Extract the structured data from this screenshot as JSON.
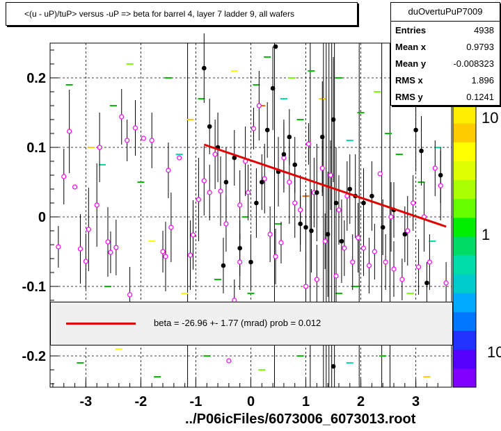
{
  "title": "<(u - uP)/tuP> versus  -uP => beta for barrel 4, layer 7 ladder 9, all wafers",
  "stats": {
    "name": "duOvertuPuP7009",
    "rows": [
      {
        "k": "Entries",
        "v": "4938"
      },
      {
        "k": "Mean x",
        "v": "0.9793"
      },
      {
        "k": "Mean y",
        "v": "-0.008323"
      },
      {
        "k": "RMS x",
        "v": "1.896"
      },
      {
        "k": "RMS y",
        "v": "0.1241"
      }
    ]
  },
  "fit": {
    "text": "beta =  -26.96 +-   1.77 (mrad) prob = 0.012",
    "line_color": "#e00000"
  },
  "x_file_label": "../P06icFiles/6073006_6073013.root",
  "z_labels": [
    "10",
    "1",
    "10"
  ],
  "chart_data": {
    "type": "scatter",
    "title": "<(u - uP)/tuP> versus  -uP => beta for barrel 4, layer 7 ladder 9, all wafers",
    "xlabel": "",
    "ylabel": "",
    "xlim": [
      -3.65,
      3.65
    ],
    "ylim": [
      -0.245,
      0.25
    ],
    "x_ticks": [
      -3,
      -2,
      -1,
      0,
      1,
      2,
      3
    ],
    "x_tick_labels": [
      "-3",
      "-2",
      "-1",
      "0",
      "1",
      "2",
      "3"
    ],
    "y_ticks": [
      -0.2,
      -0.1,
      0,
      0.1,
      0.2
    ],
    "y_tick_labels": [
      "-0.2",
      "-0.1",
      "0",
      "0.1",
      "0.2"
    ],
    "grid": true,
    "fit_line": {
      "x": [
        -0.85,
        3.55
      ],
      "y": [
        0.104,
        -0.014
      ],
      "color": "#e00000"
    },
    "pink_points": [
      {
        "x": -3.5,
        "y": -0.043,
        "e": 0.03
      },
      {
        "x": -3.4,
        "y": 0.058,
        "e": 0.04
      },
      {
        "x": -3.3,
        "y": 0.123,
        "e": 0.06
      },
      {
        "x": -3.2,
        "y": 0.043,
        "e": 0.0
      },
      {
        "x": -3.1,
        "y": -0.046,
        "e": 0.05
      },
      {
        "x": -3.0,
        "y": -0.064,
        "e": 0.04
      },
      {
        "x": -2.95,
        "y": -0.018,
        "e": 0.06
      },
      {
        "x": -2.8,
        "y": 0.017,
        "e": 0.06
      },
      {
        "x": -2.75,
        "y": 0.1,
        "e": 0.05
      },
      {
        "x": -2.6,
        "y": -0.036,
        "e": 0.05
      },
      {
        "x": -2.55,
        "y": -0.051,
        "e": 0.03
      },
      {
        "x": -2.45,
        "y": -0.044,
        "e": 0.04
      },
      {
        "x": -2.35,
        "y": 0.144,
        "e": 0.04
      },
      {
        "x": -2.2,
        "y": -0.112,
        "e": 0.04
      },
      {
        "x": -2.1,
        "y": 0.128,
        "e": 0.04
      },
      {
        "x": -1.95,
        "y": 0.113,
        "e": 0.0
      },
      {
        "x": -1.8,
        "y": 0.11,
        "e": 0.04
      },
      {
        "x": -1.6,
        "y": -0.05,
        "e": 0.03
      },
      {
        "x": -1.55,
        "y": -0.057,
        "e": 0.05
      },
      {
        "x": -1.5,
        "y": 0.067,
        "e": 0.04
      },
      {
        "x": -1.45,
        "y": -0.015,
        "e": 0.05
      },
      {
        "x": -1.3,
        "y": 0.085,
        "e": 0.0
      },
      {
        "x": -1.1,
        "y": -0.055,
        "e": 0.05
      },
      {
        "x": -0.95,
        "y": 0.025,
        "e": 0.06
      },
      {
        "x": -0.85,
        "y": 0.052,
        "e": 0.05
      },
      {
        "x": -0.75,
        "y": 0.035,
        "e": 0.04
      },
      {
        "x": -0.65,
        "y": 0.09,
        "e": 0.05
      },
      {
        "x": -0.55,
        "y": 0.037,
        "e": 0.05
      },
      {
        "x": -0.45,
        "y": -0.01,
        "e": 0.04
      },
      {
        "x": -0.3,
        "y": -0.12,
        "e": 0.03
      },
      {
        "x": -0.2,
        "y": 0.017,
        "e": 0.05
      },
      {
        "x": -0.1,
        "y": 0.08,
        "e": 0.05
      },
      {
        "x": -0.05,
        "y": 0.035,
        "e": 0.04
      },
      {
        "x": -0.2,
        "y": -0.065,
        "e": 0.04
      },
      {
        "x": 0.05,
        "y": 0.127,
        "e": 0.03
      },
      {
        "x": 0.15,
        "y": 0.16,
        "e": 0.05
      },
      {
        "x": 0.25,
        "y": 0.055,
        "e": 0.05
      },
      {
        "x": 0.35,
        "y": -0.025,
        "e": 0.04
      },
      {
        "x": 0.45,
        "y": -0.057,
        "e": 0.04
      },
      {
        "x": 0.55,
        "y": -0.037,
        "e": 0.03
      },
      {
        "x": 0.6,
        "y": 0.085,
        "e": 0.05
      },
      {
        "x": 0.7,
        "y": 0.05,
        "e": 0.06
      },
      {
        "x": 0.8,
        "y": 0.02,
        "e": 0.05
      },
      {
        "x": 0.9,
        "y": 0.01,
        "e": 0.05
      },
      {
        "x": 1.0,
        "y": -0.1,
        "e": 0.05
      },
      {
        "x": 1.05,
        "y": 0.105,
        "e": 0.03
      },
      {
        "x": 1.15,
        "y": 0.035,
        "e": 0.05
      },
      {
        "x": 1.2,
        "y": -0.09,
        "e": 0.05
      },
      {
        "x": 1.3,
        "y": 0.07,
        "e": 0.04
      },
      {
        "x": 1.35,
        "y": -0.035,
        "e": 0.04
      },
      {
        "x": 1.45,
        "y": 0.06,
        "e": 0.05
      },
      {
        "x": 1.55,
        "y": -0.085,
        "e": 0.04
      },
      {
        "x": 1.6,
        "y": 0.01,
        "e": 0.05
      },
      {
        "x": 1.7,
        "y": -0.045,
        "e": 0.04
      },
      {
        "x": 1.75,
        "y": 0.03,
        "e": 0.05
      },
      {
        "x": 1.85,
        "y": -0.065,
        "e": 0.04
      },
      {
        "x": 1.95,
        "y": -0.03,
        "e": 0.05
      },
      {
        "x": 2.05,
        "y": -0.045,
        "e": 0.04
      },
      {
        "x": 2.15,
        "y": -0.07,
        "e": 0.04
      },
      {
        "x": 2.25,
        "y": -0.05,
        "e": 0.04
      },
      {
        "x": 2.35,
        "y": 0.062,
        "e": 0.0
      },
      {
        "x": 2.45,
        "y": -0.065,
        "e": 0.04
      },
      {
        "x": 2.55,
        "y": 0.0,
        "e": 0.05
      },
      {
        "x": 2.6,
        "y": -0.075,
        "e": 0.04
      },
      {
        "x": 2.75,
        "y": -0.09,
        "e": 0.03
      },
      {
        "x": 2.85,
        "y": -0.02,
        "e": 0.05
      },
      {
        "x": 2.95,
        "y": 0.02,
        "e": 0.04
      },
      {
        "x": 3.05,
        "y": -0.072,
        "e": 0.04
      },
      {
        "x": 3.15,
        "y": 0.0,
        "e": 0.05
      },
      {
        "x": 3.25,
        "y": -0.065,
        "e": 0.04
      },
      {
        "x": 3.35,
        "y": 0.07,
        "e": 0.04
      },
      {
        "x": 3.45,
        "y": 0.045,
        "e": 0.05
      },
      {
        "x": 3.55,
        "y": -0.095,
        "e": 0.03
      },
      {
        "x": -1.05,
        "y": -0.026,
        "e": 0.05
      },
      {
        "x": -2.25,
        "y": 0.11,
        "e": 0.03
      },
      {
        "x": -0.4,
        "y": -0.207,
        "e": 0.0
      }
    ],
    "black_points": [
      {
        "x": -0.85,
        "y": 0.214,
        "e": 0.05
      },
      {
        "x": -0.75,
        "y": 0.13,
        "e": 0.04
      },
      {
        "x": -0.6,
        "y": 0.1,
        "e": 0.05
      },
      {
        "x": -0.5,
        "y": -0.07,
        "e": 0.04
      },
      {
        "x": -0.45,
        "y": 0.05,
        "e": 0.05
      },
      {
        "x": -0.3,
        "y": 0.085,
        "e": 0.04
      },
      {
        "x": -0.2,
        "y": -0.045,
        "e": 0.04
      },
      {
        "x": 0.0,
        "y": -0.065,
        "e": 0.04
      },
      {
        "x": 0.1,
        "y": 0.02,
        "e": 0.05
      },
      {
        "x": 0.2,
        "y": 0.05,
        "e": 0.04
      },
      {
        "x": 0.3,
        "y": 0.125,
        "e": 0.04
      },
      {
        "x": 0.4,
        "y": 0.185,
        "e": 0.06
      },
      {
        "x": 0.5,
        "y": 0.065,
        "e": 0.05
      },
      {
        "x": 0.6,
        "y": 0.09,
        "e": 0.05
      },
      {
        "x": 0.7,
        "y": 0.115,
        "e": 0.04
      },
      {
        "x": 0.8,
        "y": 0.075,
        "e": 0.04
      },
      {
        "x": 0.9,
        "y": -0.01,
        "e": 0.04
      },
      {
        "x": 1.0,
        "y": -0.015,
        "e": 0.05
      },
      {
        "x": 1.1,
        "y": -0.02,
        "e": 0.06
      },
      {
        "x": 1.2,
        "y": 0.035,
        "e": 0.07
      },
      {
        "x": 1.3,
        "y": 0.115,
        "e": 0.08
      },
      {
        "x": 1.4,
        "y": -0.025,
        "e": 0.09
      },
      {
        "x": 1.5,
        "y": 0.14,
        "e": 0.09
      },
      {
        "x": 1.55,
        "y": 0.02,
        "e": 0.08
      },
      {
        "x": 1.65,
        "y": -0.035,
        "e": 0.06
      },
      {
        "x": 1.8,
        "y": 0.04,
        "e": 0.05
      },
      {
        "x": 1.9,
        "y": 0.03,
        "e": 0.06
      },
      {
        "x": 2.05,
        "y": 0.02,
        "e": 0.05
      },
      {
        "x": 2.2,
        "y": 0.03,
        "e": 0.05
      },
      {
        "x": 2.4,
        "y": -0.015,
        "e": 0.04
      },
      {
        "x": 2.6,
        "y": 0.01,
        "e": 0.04
      },
      {
        "x": 2.8,
        "y": -0.025,
        "e": 0.04
      },
      {
        "x": 3.0,
        "y": 0.125,
        "e": 0.06
      },
      {
        "x": 3.1,
        "y": 0.095,
        "e": 0.05
      },
      {
        "x": 3.2,
        "y": -0.095,
        "e": 0.03
      },
      {
        "x": 3.45,
        "y": 0.06,
        "e": 0.04
      },
      {
        "x": 1.5,
        "y": -0.215,
        "e": 0.0
      },
      {
        "x": 0.45,
        "y": 0.245,
        "e": 0.0
      }
    ],
    "colored_dashes": [
      {
        "x": -3.3,
        "y": 0.19,
        "c": "#00c000"
      },
      {
        "x": -2.9,
        "y": 0.1,
        "c": "#ffcc00"
      },
      {
        "x": -2.7,
        "y": 0.075,
        "c": "#00e0a0"
      },
      {
        "x": -2.5,
        "y": 0.16,
        "c": "#00c000"
      },
      {
        "x": -2.2,
        "y": 0.22,
        "c": "#80ff00"
      },
      {
        "x": -2.0,
        "y": 0.05,
        "c": "#00c000"
      },
      {
        "x": -1.8,
        "y": -0.035,
        "c": "#ffff00"
      },
      {
        "x": -1.5,
        "y": 0.2,
        "c": "#00c000"
      },
      {
        "x": -1.3,
        "y": 0.09,
        "c": "#00e0a0"
      },
      {
        "x": -1.1,
        "y": 0.14,
        "c": "#ffcc00"
      },
      {
        "x": -0.9,
        "y": 0.17,
        "c": "#00c000"
      },
      {
        "x": -0.6,
        "y": -0.09,
        "c": "#00c000"
      },
      {
        "x": -0.3,
        "y": 0.21,
        "c": "#ffff00"
      },
      {
        "x": 0.1,
        "y": 0.19,
        "c": "#00c000"
      },
      {
        "x": 0.2,
        "y": 0.16,
        "c": "#ff6600"
      },
      {
        "x": 0.3,
        "y": 0.23,
        "c": "#00c000"
      },
      {
        "x": 0.6,
        "y": 0.17,
        "c": "#00e0a0"
      },
      {
        "x": 0.75,
        "y": 0.2,
        "c": "#80ff00"
      },
      {
        "x": 0.9,
        "y": 0.14,
        "c": "#00c000"
      },
      {
        "x": 1.1,
        "y": 0.21,
        "c": "#00c000"
      },
      {
        "x": 1.3,
        "y": 0.17,
        "c": "#ffcc00"
      },
      {
        "x": 1.6,
        "y": 0.2,
        "c": "#00c000"
      },
      {
        "x": 1.8,
        "y": 0.11,
        "c": "#00e0a0"
      },
      {
        "x": 2.0,
        "y": 0.15,
        "c": "#00c000"
      },
      {
        "x": 2.3,
        "y": 0.18,
        "c": "#80ff00"
      },
      {
        "x": 2.5,
        "y": 0.12,
        "c": "#00c000"
      },
      {
        "x": 2.8,
        "y": 0.16,
        "c": "#ffcc00"
      },
      {
        "x": 3.1,
        "y": 0.05,
        "c": "#00c000"
      },
      {
        "x": 3.3,
        "y": -0.035,
        "c": "#00e0a0"
      },
      {
        "x": -3.1,
        "y": -0.21,
        "c": "#00c000"
      },
      {
        "x": -2.4,
        "y": -0.19,
        "c": "#ffff00"
      },
      {
        "x": -1.7,
        "y": -0.23,
        "c": "#00c000"
      },
      {
        "x": -0.8,
        "y": -0.2,
        "c": "#00c000"
      },
      {
        "x": 0.2,
        "y": -0.22,
        "c": "#80ff00"
      },
      {
        "x": 0.9,
        "y": -0.2,
        "c": "#00c000"
      },
      {
        "x": 1.8,
        "y": -0.21,
        "c": "#00e0a0"
      },
      {
        "x": 2.4,
        "y": -0.2,
        "c": "#00c000"
      },
      {
        "x": 3.2,
        "y": -0.23,
        "c": "#ffcc00"
      },
      {
        "x": -0.1,
        "y": 0.0,
        "c": "#00c000"
      },
      {
        "x": 0.5,
        "y": -0.01,
        "c": "#00c000"
      },
      {
        "x": 1.0,
        "y": 0.03,
        "c": "#ff6600"
      },
      {
        "x": 1.9,
        "y": -0.1,
        "c": "#00c000"
      },
      {
        "x": 2.7,
        "y": 0.09,
        "c": "#00c000"
      },
      {
        "x": 3.4,
        "y": 0.1,
        "c": "#00e0a0"
      },
      {
        "x": -2.6,
        "y": -0.1,
        "c": "#00c000"
      },
      {
        "x": -1.2,
        "y": -0.11,
        "c": "#ffff00"
      },
      {
        "x": 0.0,
        "y": -0.11,
        "c": "#00c000"
      },
      {
        "x": 1.6,
        "y": -0.11,
        "c": "#00c000"
      },
      {
        "x": 2.9,
        "y": -0.11,
        "c": "#80ff00"
      }
    ],
    "vertical_lines_x": [
      -1.15,
      0.43,
      1.08,
      1.32,
      1.37,
      1.42,
      1.47,
      1.52,
      1.97,
      2.38,
      2.53
    ],
    "palette": [
      "#7f00ff",
      "#5500ff",
      "#2233ff",
      "#0077ff",
      "#00aaff",
      "#00cccc",
      "#00ddaa",
      "#00dd66",
      "#00ee00",
      "#66ff00",
      "#aaff00",
      "#ddff00",
      "#ffff00",
      "#ffcc00",
      "#ffee00"
    ]
  }
}
